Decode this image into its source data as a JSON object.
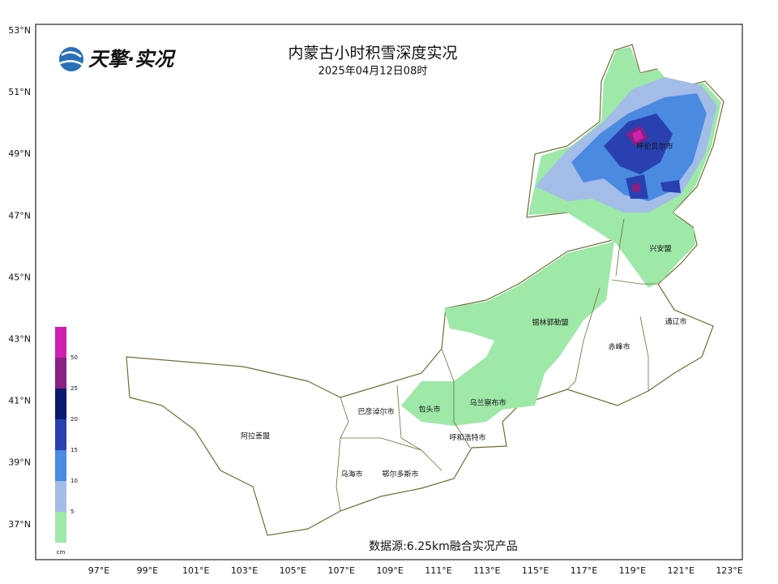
{
  "header": {
    "logo": "天擎·实况",
    "title": "内蒙古小时积雪深度实况",
    "subtitle": "2025年04月12日08时"
  },
  "axes": {
    "lat_labels": [
      "53°N",
      "51°N",
      "49°N",
      "47°N",
      "45°N",
      "43°N",
      "41°N",
      "39°N",
      "37°N"
    ],
    "lon_labels": [
      "97°E",
      "99°E",
      "101°E",
      "103°E",
      "105°E",
      "107°E",
      "109°E",
      "111°E",
      "113°E",
      "115°E",
      "117°E",
      "119°E",
      "121°E",
      "123°E"
    ]
  },
  "places": [
    {
      "label": "呼伦贝尔市"
    },
    {
      "label": "兴安盟"
    },
    {
      "label": "通辽市"
    },
    {
      "label": "锡林郭勒盟"
    },
    {
      "label": "赤峰市"
    },
    {
      "label": "乌兰察布市"
    },
    {
      "label": "巴彦淖尔市"
    },
    {
      "label": "包头市"
    },
    {
      "label": "呼和浩特市"
    },
    {
      "label": "阿拉善盟"
    },
    {
      "label": "乌海市"
    },
    {
      "label": "鄂尔多斯市"
    }
  ],
  "legend": {
    "colors": [
      "#9ee8a8",
      "#a4bce8",
      "#4a8ae0",
      "#2a40b0",
      "#0a1a70",
      "#8a2080",
      "#d020b0"
    ],
    "labels": [
      "5",
      "10",
      "15",
      "20",
      "25",
      "50"
    ],
    "unit": "cm"
  },
  "source": "数据源:6.25km融合实况产品"
}
